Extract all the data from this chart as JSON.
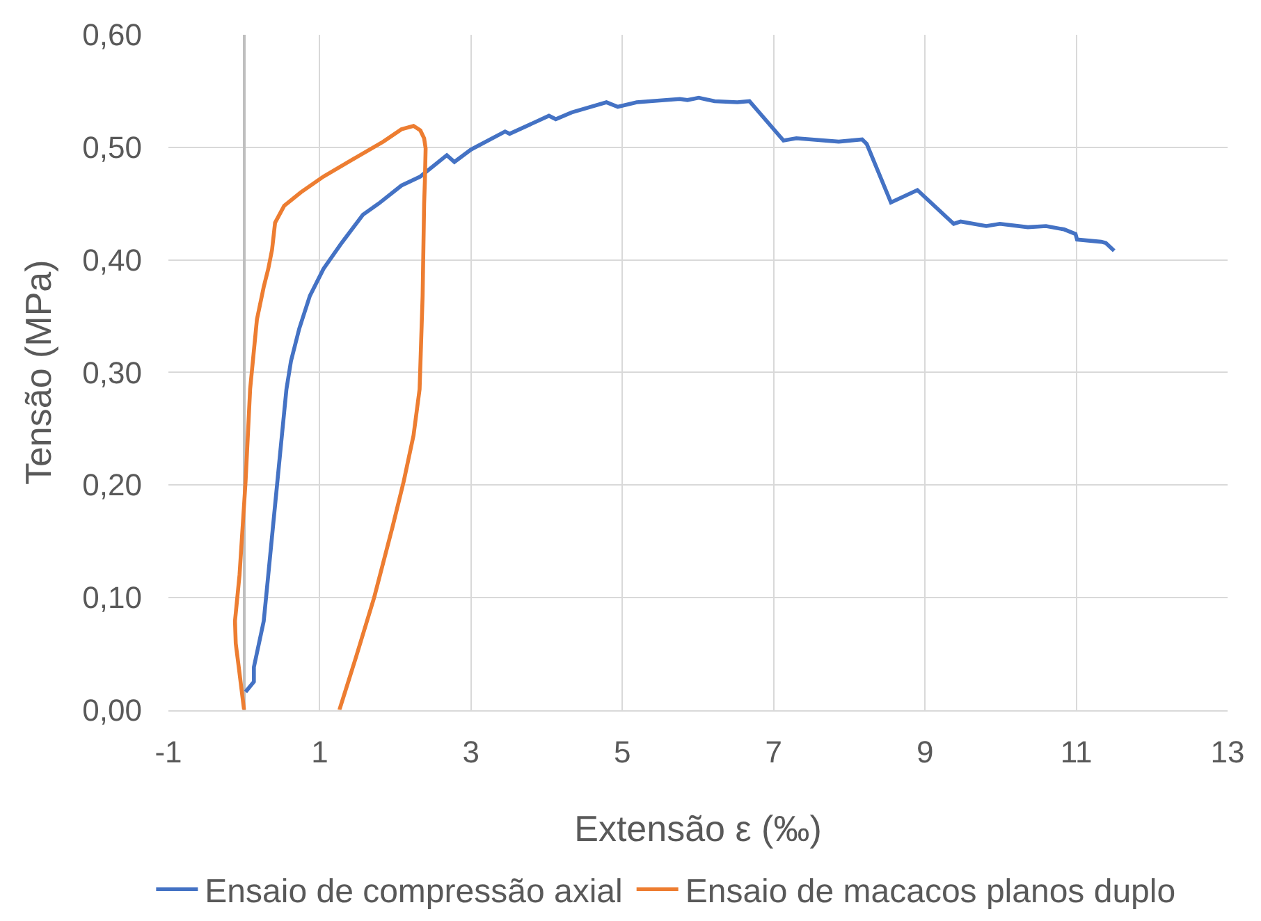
{
  "chart_data": {
    "type": "line",
    "xlabel": "Extensão ε (‰)",
    "ylabel": "Tensão (MPa)",
    "xlim": [
      -1,
      13
    ],
    "xticks": [
      -1,
      1,
      3,
      5,
      7,
      9,
      11,
      13
    ],
    "ylim": [
      0,
      0.6
    ],
    "yticks": [
      {
        "value": 0,
        "label": "0,00"
      },
      {
        "value": 0.1,
        "label": "0,10"
      },
      {
        "value": 0.2,
        "label": "0,20"
      },
      {
        "value": 0.3,
        "label": "0,30"
      },
      {
        "value": 0.4,
        "label": "0,40"
      },
      {
        "value": 0.5,
        "label": "0,50"
      },
      {
        "value": 0.6,
        "label": "0,60"
      }
    ],
    "grid": true,
    "legend": "bottom",
    "marker": "none",
    "line_style": "solid",
    "series": [
      {
        "name": "Ensaio de compressão axial",
        "color": "#4472c4",
        "x": [
          0.02,
          0.13,
          0.13,
          0.26,
          0.32,
          0.41,
          0.5,
          0.56,
          0.62,
          0.73,
          0.87,
          1.05,
          1.29,
          1.57,
          1.78,
          2.08,
          2.33,
          2.68,
          2.78,
          3.0,
          3.45,
          3.51,
          4.03,
          4.12,
          4.33,
          4.79,
          4.94,
          5.19,
          5.76,
          5.86,
          6.01,
          6.22,
          6.52,
          6.68,
          7.13,
          7.3,
          7.86,
          8.17,
          8.23,
          8.55,
          8.9,
          9.38,
          9.47,
          9.81,
          9.99,
          10.36,
          10.6,
          10.84,
          10.99,
          11.01,
          11.33,
          11.39,
          11.5
        ],
        "values": [
          0.016,
          0.025,
          0.038,
          0.079,
          0.12,
          0.182,
          0.244,
          0.285,
          0.31,
          0.339,
          0.368,
          0.392,
          0.415,
          0.44,
          0.45,
          0.466,
          0.474,
          0.493,
          0.487,
          0.498,
          0.514,
          0.512,
          0.528,
          0.525,
          0.531,
          0.54,
          0.536,
          0.54,
          0.543,
          0.542,
          0.544,
          0.541,
          0.54,
          0.541,
          0.506,
          0.508,
          0.505,
          0.507,
          0.503,
          0.451,
          0.462,
          0.432,
          0.434,
          0.43,
          0.432,
          0.429,
          0.43,
          0.427,
          0.423,
          0.418,
          0.416,
          0.415,
          0.408
        ]
      },
      {
        "name": "Ensaio de macacos planos duplo",
        "color": "#ed7d31",
        "x": [
          0.0,
          -0.07,
          -0.11,
          -0.12,
          -0.06,
          0.02,
          0.08,
          0.17,
          0.26,
          0.32,
          0.37,
          0.41,
          0.53,
          0.75,
          1.05,
          1.48,
          1.84,
          2.08,
          2.24,
          2.33,
          2.38,
          2.4,
          2.39,
          2.38,
          2.36,
          2.32,
          2.24,
          2.11,
          1.96,
          1.72,
          1.48,
          1.26
        ],
        "values": [
          0.0,
          0.038,
          0.059,
          0.079,
          0.12,
          0.203,
          0.285,
          0.347,
          0.376,
          0.392,
          0.409,
          0.433,
          0.448,
          0.46,
          0.474,
          0.491,
          0.505,
          0.516,
          0.519,
          0.515,
          0.508,
          0.499,
          0.47,
          0.45,
          0.368,
          0.285,
          0.244,
          0.203,
          0.162,
          0.1,
          0.047,
          0.0
        ]
      }
    ]
  }
}
